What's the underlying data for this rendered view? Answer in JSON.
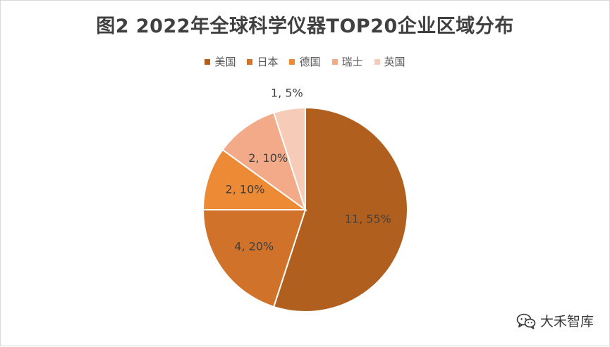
{
  "chart_data": {
    "type": "pie",
    "title": "图2 2022年全球科学仪器TOP20企业区域分布",
    "legend_position": "top",
    "categories": [
      "美国",
      "日本",
      "德国",
      "瑞士",
      "英国"
    ],
    "values": [
      11,
      4,
      2,
      2,
      1
    ],
    "percentages": [
      55,
      20,
      10,
      10,
      5
    ],
    "data_labels": [
      "11, 55%",
      "4, 20%",
      "2, 10%",
      "2, 10%",
      "1, 5%"
    ],
    "colors": [
      "#B05F1F",
      "#D1722A",
      "#EC8A35",
      "#F2AA88",
      "#F6CBB8"
    ]
  },
  "watermark": {
    "icon": "wechat-icon",
    "text": "大禾智库"
  }
}
